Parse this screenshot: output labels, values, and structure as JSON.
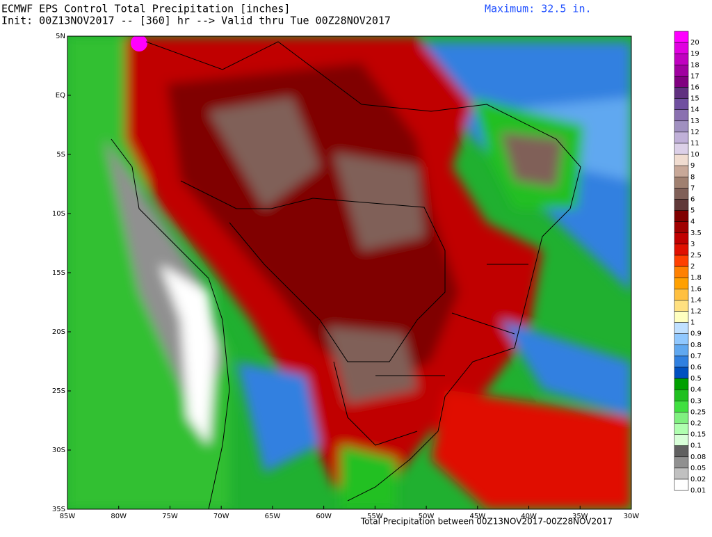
{
  "header": {
    "title": "ECMWF EPS Control Total Precipitation [inches]",
    "subtitle": "Init: 00Z13NOV2017 -- [360] hr --> Valid thru Tue 00Z28NOV2017",
    "maximum": "Maximum: 32.5 in."
  },
  "map": {
    "lat_labels": [
      "5N",
      "EQ",
      "5S",
      "10S",
      "15S",
      "20S",
      "25S",
      "30S",
      "35S"
    ],
    "lon_labels": [
      "85W",
      "80W",
      "75W",
      "70W",
      "65W",
      "60W",
      "55W",
      "50W",
      "45W",
      "40W",
      "35W",
      "30W"
    ]
  },
  "legend": {
    "items": [
      {
        "label": "20",
        "color": "#ff00ff"
      },
      {
        "label": "19",
        "color": "#e000e0"
      },
      {
        "label": "18",
        "color": "#c000c0"
      },
      {
        "label": "17",
        "color": "#a000a0"
      },
      {
        "label": "16",
        "color": "#800080"
      },
      {
        "label": "15",
        "color": "#603080"
      },
      {
        "label": "14",
        "color": "#7050a0"
      },
      {
        "label": "13",
        "color": "#8a70b0"
      },
      {
        "label": "12",
        "color": "#a090c0"
      },
      {
        "label": "11",
        "color": "#c0b0d8"
      },
      {
        "label": "10",
        "color": "#dcd0e8"
      },
      {
        "label": "9",
        "color": "#f0dcd0"
      },
      {
        "label": "8",
        "color": "#c8a898"
      },
      {
        "label": "7",
        "color": "#a08070"
      },
      {
        "label": "6",
        "color": "#806058"
      },
      {
        "label": "5",
        "color": "#603838"
      },
      {
        "label": "4",
        "color": "#800000"
      },
      {
        "label": "3.5",
        "color": "#a00000"
      },
      {
        "label": "3",
        "color": "#c00000"
      },
      {
        "label": "2.5",
        "color": "#e01000"
      },
      {
        "label": "2",
        "color": "#ff4000"
      },
      {
        "label": "1.8",
        "color": "#ff8000"
      },
      {
        "label": "1.6",
        "color": "#ffa000"
      },
      {
        "label": "1.4",
        "color": "#ffc040"
      },
      {
        "label": "1.2",
        "color": "#ffe080"
      },
      {
        "label": "1",
        "color": "#ffffc0"
      },
      {
        "label": "0.9",
        "color": "#c0e0ff"
      },
      {
        "label": "0.8",
        "color": "#90c8ff"
      },
      {
        "label": "0.7",
        "color": "#60a8f0"
      },
      {
        "label": "0.6",
        "color": "#3080e0"
      },
      {
        "label": "0.5",
        "color": "#0050c0"
      },
      {
        "label": "0.4",
        "color": "#00a000"
      },
      {
        "label": "0.3",
        "color": "#20c020"
      },
      {
        "label": "0.25",
        "color": "#40e040"
      },
      {
        "label": "0.2",
        "color": "#80f080"
      },
      {
        "label": "0.15",
        "color": "#b0ffb0"
      },
      {
        "label": "0.1",
        "color": "#d8ffd8"
      },
      {
        "label": "0.08",
        "color": "#606060"
      },
      {
        "label": "0.05",
        "color": "#909090"
      },
      {
        "label": "0.02",
        "color": "#c0c0c0"
      },
      {
        "label": "0.01",
        "color": "#ffffff"
      }
    ]
  },
  "footer": {
    "caption": "Total Precipitation between 00Z13NOV2017-00Z28NOV2017"
  }
}
